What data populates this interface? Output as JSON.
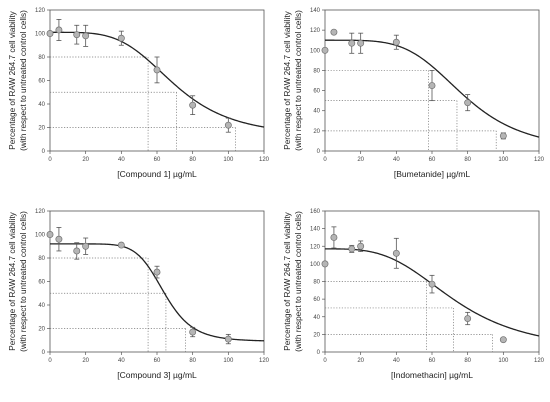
{
  "chart_data": [
    {
      "type": "scatter",
      "ylabel_line1": "Percentage of RAW 264.7 cell viability",
      "ylabel_line2": "(with respect to untreated control cells)",
      "xlabel": "[Compound 1] µg/mL",
      "xlim": [
        0,
        120
      ],
      "ylim": [
        0,
        120
      ],
      "xticks": [
        0,
        20,
        40,
        60,
        80,
        100,
        120
      ],
      "yticks": [
        0,
        20,
        40,
        60,
        80,
        100,
        120
      ],
      "grid": false,
      "points": [
        {
          "x": 0,
          "y": 100,
          "err": 0
        },
        {
          "x": 5,
          "y": 103,
          "err": 9
        },
        {
          "x": 15,
          "y": 99,
          "err": 8
        },
        {
          "x": 20,
          "y": 98,
          "err": 9
        },
        {
          "x": 40,
          "y": 96,
          "err": 6
        },
        {
          "x": 60,
          "y": 69,
          "err": 11
        },
        {
          "x": 80,
          "y": 39,
          "err": 8
        },
        {
          "x": 100,
          "y": 22,
          "err": 6
        }
      ],
      "fit": {
        "top": 101,
        "bottom": 12,
        "ec50": 70,
        "hill": 4.2
      },
      "reference_lines": [
        {
          "y": 80,
          "x": 55
        },
        {
          "y": 50,
          "x": 71
        },
        {
          "y": 20,
          "x": 104
        }
      ]
    },
    {
      "type": "scatter",
      "ylabel_line1": "Percentage of RAW 264.7 cell viability",
      "ylabel_line2": "(with respect to untreated control cells)",
      "xlabel": "[Bumetanide] µg/mL",
      "xlim": [
        0,
        120
      ],
      "ylim": [
        0,
        140
      ],
      "xticks": [
        0,
        20,
        40,
        60,
        80,
        100,
        120
      ],
      "yticks": [
        0,
        20,
        40,
        60,
        80,
        100,
        120,
        140
      ],
      "grid": false,
      "points": [
        {
          "x": 0,
          "y": 100,
          "err": 0
        },
        {
          "x": 5,
          "y": 118,
          "err": 0
        },
        {
          "x": 15,
          "y": 107,
          "err": 10
        },
        {
          "x": 20,
          "y": 107,
          "err": 10
        },
        {
          "x": 40,
          "y": 108,
          "err": 7
        },
        {
          "x": 60,
          "y": 65,
          "err": 15
        },
        {
          "x": 80,
          "y": 48,
          "err": 8
        },
        {
          "x": 100,
          "y": 15,
          "err": 3
        }
      ],
      "fit": {
        "top": 110,
        "bottom": 0,
        "ec50": 78,
        "hill": 4.5
      },
      "reference_lines": [
        {
          "y": 80,
          "x": 58
        },
        {
          "y": 50,
          "x": 74
        },
        {
          "y": 20,
          "x": 96
        }
      ]
    },
    {
      "type": "scatter",
      "ylabel_line1": "Percentage of RAW 264.7 cell viability",
      "ylabel_line2": "(with respect to untreated control cells)",
      "xlabel": "[Compound 3] µg/mL",
      "xlim": [
        0,
        120
      ],
      "ylim": [
        0,
        120
      ],
      "xticks": [
        0,
        20,
        40,
        60,
        80,
        100,
        120
      ],
      "yticks": [
        0,
        20,
        40,
        60,
        80,
        100,
        120
      ],
      "grid": false,
      "points": [
        {
          "x": 0,
          "y": 100,
          "err": 0
        },
        {
          "x": 5,
          "y": 96,
          "err": 10
        },
        {
          "x": 15,
          "y": 86,
          "err": 7
        },
        {
          "x": 20,
          "y": 90,
          "err": 7
        },
        {
          "x": 40,
          "y": 91,
          "err": 1
        },
        {
          "x": 60,
          "y": 68,
          "err": 5
        },
        {
          "x": 80,
          "y": 17,
          "err": 4
        },
        {
          "x": 100,
          "y": 11,
          "err": 4
        }
      ],
      "fit": {
        "top": 92,
        "bottom": 9,
        "ec50": 64,
        "hill": 8
      },
      "reference_lines": [
        {
          "y": 80,
          "x": 55
        },
        {
          "y": 50,
          "x": 65
        },
        {
          "y": 20,
          "x": 76
        }
      ]
    },
    {
      "type": "scatter",
      "ylabel_line1": "Percentage of RAW 264.7 cell viability",
      "ylabel_line2": "(with respect to untreated control cells)",
      "xlabel": "[Indomethacin] µg/mL",
      "xlim": [
        0,
        120
      ],
      "ylim": [
        0,
        160
      ],
      "xticks": [
        0,
        20,
        40,
        60,
        80,
        100,
        120
      ],
      "yticks": [
        0,
        20,
        40,
        60,
        80,
        100,
        120,
        140,
        160
      ],
      "grid": false,
      "points": [
        {
          "x": 0,
          "y": 100,
          "err": 0
        },
        {
          "x": 5,
          "y": 130,
          "err": 12
        },
        {
          "x": 15,
          "y": 117,
          "err": 4
        },
        {
          "x": 20,
          "y": 120,
          "err": 6
        },
        {
          "x": 40,
          "y": 112,
          "err": 17
        },
        {
          "x": 60,
          "y": 77,
          "err": 10
        },
        {
          "x": 80,
          "y": 38,
          "err": 7
        },
        {
          "x": 100,
          "y": 14,
          "err": 2
        }
      ],
      "fit": {
        "top": 117,
        "bottom": 0,
        "ec50": 73,
        "hill": 3.4
      },
      "reference_lines": [
        {
          "y": 80,
          "x": 57
        },
        {
          "y": 50,
          "x": 72
        },
        {
          "y": 20,
          "x": 94
        }
      ]
    }
  ]
}
